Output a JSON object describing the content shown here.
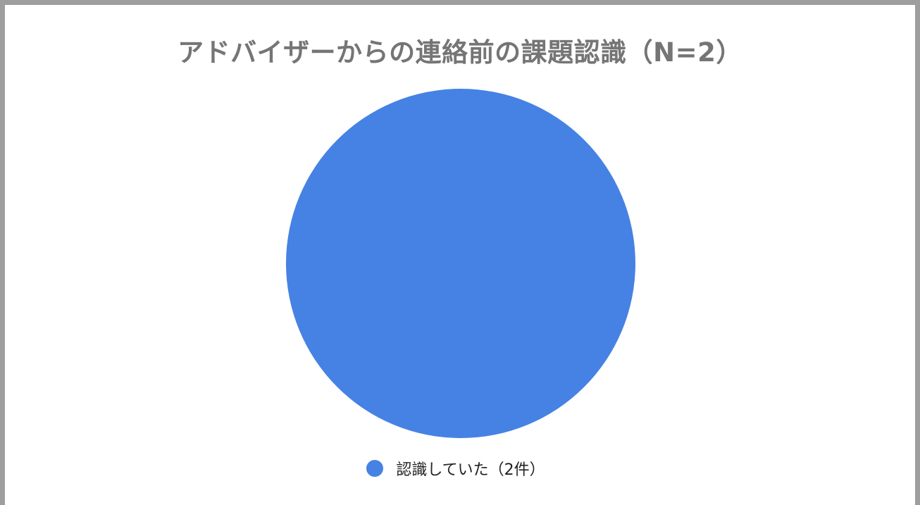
{
  "chart_data": {
    "type": "pie",
    "title": "アドバイザーからの連絡前の課題認識（N=2）",
    "categories": [
      "認識していた（2件）"
    ],
    "values": [
      2
    ],
    "colors": [
      "#4682e4"
    ],
    "legend_position": "bottom"
  }
}
